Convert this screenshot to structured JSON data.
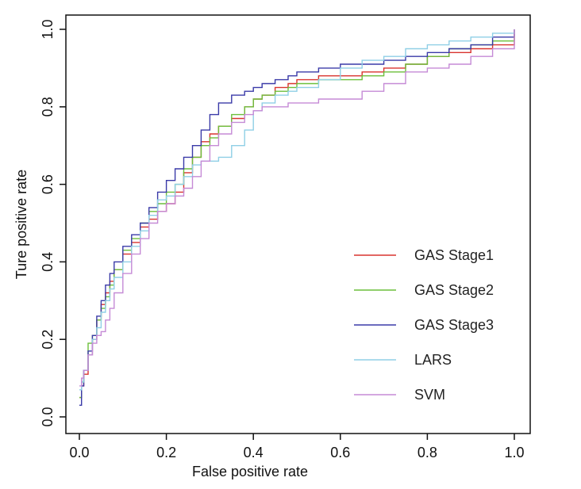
{
  "chart_data": {
    "type": "line",
    "title": "",
    "xlabel": "False positive rate",
    "ylabel": "Ture positive rate",
    "xlim": [
      0,
      1
    ],
    "ylim": [
      0,
      1
    ],
    "xticks": [
      "0.0",
      "0.2",
      "0.4",
      "0.6",
      "0.8",
      "1.0"
    ],
    "yticks": [
      "0.0",
      "0.2",
      "0.4",
      "0.6",
      "0.8",
      "1.0"
    ],
    "grid": false,
    "legend_position": "bottom-right",
    "series": [
      {
        "name": "GAS Stage1",
        "color": "#d9332e",
        "x": [
          0,
          0.005,
          0.01,
          0.02,
          0.03,
          0.04,
          0.05,
          0.06,
          0.07,
          0.08,
          0.1,
          0.12,
          0.14,
          0.16,
          0.18,
          0.2,
          0.22,
          0.24,
          0.26,
          0.28,
          0.3,
          0.32,
          0.35,
          0.38,
          0.4,
          0.42,
          0.45,
          0.48,
          0.5,
          0.55,
          0.6,
          0.65,
          0.7,
          0.75,
          0.8,
          0.85,
          0.9,
          0.95,
          1.0
        ],
        "y": [
          0.05,
          0.08,
          0.11,
          0.16,
          0.2,
          0.25,
          0.29,
          0.32,
          0.35,
          0.38,
          0.42,
          0.45,
          0.49,
          0.51,
          0.53,
          0.55,
          0.58,
          0.63,
          0.67,
          0.71,
          0.73,
          0.75,
          0.77,
          0.8,
          0.82,
          0.83,
          0.85,
          0.86,
          0.87,
          0.88,
          0.88,
          0.89,
          0.9,
          0.91,
          0.93,
          0.94,
          0.95,
          0.96,
          1.0
        ]
      },
      {
        "name": "GAS Stage2",
        "color": "#6cbf3b",
        "x": [
          0,
          0.005,
          0.01,
          0.02,
          0.03,
          0.04,
          0.05,
          0.06,
          0.07,
          0.08,
          0.1,
          0.12,
          0.14,
          0.16,
          0.18,
          0.2,
          0.22,
          0.24,
          0.26,
          0.28,
          0.3,
          0.32,
          0.35,
          0.38,
          0.4,
          0.42,
          0.45,
          0.48,
          0.5,
          0.55,
          0.6,
          0.65,
          0.7,
          0.75,
          0.8,
          0.85,
          0.9,
          0.95,
          1.0
        ],
        "y": [
          0.05,
          0.09,
          0.12,
          0.19,
          0.21,
          0.25,
          0.28,
          0.31,
          0.34,
          0.38,
          0.43,
          0.46,
          0.5,
          0.53,
          0.55,
          0.58,
          0.6,
          0.64,
          0.67,
          0.7,
          0.72,
          0.75,
          0.78,
          0.8,
          0.82,
          0.83,
          0.84,
          0.85,
          0.86,
          0.87,
          0.87,
          0.88,
          0.89,
          0.91,
          0.93,
          0.95,
          0.96,
          0.97,
          1.0
        ]
      },
      {
        "name": "GAS Stage3",
        "color": "#3a3aa8",
        "x": [
          0,
          0.005,
          0.01,
          0.02,
          0.03,
          0.04,
          0.05,
          0.06,
          0.07,
          0.08,
          0.1,
          0.12,
          0.14,
          0.16,
          0.18,
          0.2,
          0.22,
          0.24,
          0.26,
          0.28,
          0.3,
          0.32,
          0.35,
          0.38,
          0.4,
          0.42,
          0.45,
          0.48,
          0.5,
          0.55,
          0.6,
          0.65,
          0.7,
          0.75,
          0.8,
          0.85,
          0.9,
          0.95,
          1.0
        ],
        "y": [
          0.03,
          0.08,
          0.12,
          0.17,
          0.21,
          0.26,
          0.3,
          0.34,
          0.37,
          0.4,
          0.44,
          0.47,
          0.5,
          0.54,
          0.58,
          0.61,
          0.64,
          0.67,
          0.7,
          0.74,
          0.78,
          0.81,
          0.83,
          0.84,
          0.85,
          0.86,
          0.87,
          0.88,
          0.89,
          0.9,
          0.91,
          0.91,
          0.92,
          0.93,
          0.94,
          0.95,
          0.96,
          0.98,
          1.0
        ]
      },
      {
        "name": "LARS",
        "color": "#8fcfe6",
        "x": [
          0,
          0.005,
          0.01,
          0.02,
          0.03,
          0.04,
          0.05,
          0.06,
          0.07,
          0.08,
          0.1,
          0.12,
          0.14,
          0.16,
          0.18,
          0.2,
          0.22,
          0.24,
          0.26,
          0.28,
          0.3,
          0.32,
          0.35,
          0.38,
          0.4,
          0.42,
          0.45,
          0.48,
          0.5,
          0.55,
          0.6,
          0.65,
          0.7,
          0.75,
          0.8,
          0.85,
          0.9,
          0.95,
          1.0
        ],
        "y": [
          0.07,
          0.09,
          0.12,
          0.16,
          0.2,
          0.23,
          0.27,
          0.3,
          0.33,
          0.36,
          0.4,
          0.44,
          0.48,
          0.52,
          0.56,
          0.57,
          0.6,
          0.62,
          0.65,
          0.66,
          0.66,
          0.67,
          0.7,
          0.74,
          0.79,
          0.81,
          0.83,
          0.84,
          0.85,
          0.87,
          0.9,
          0.92,
          0.93,
          0.95,
          0.96,
          0.97,
          0.98,
          0.99,
          1.0
        ]
      },
      {
        "name": "SVM",
        "color": "#c58ad6",
        "x": [
          0,
          0.005,
          0.01,
          0.02,
          0.03,
          0.04,
          0.05,
          0.06,
          0.07,
          0.08,
          0.1,
          0.12,
          0.14,
          0.16,
          0.18,
          0.2,
          0.22,
          0.24,
          0.26,
          0.28,
          0.3,
          0.32,
          0.35,
          0.38,
          0.4,
          0.42,
          0.45,
          0.48,
          0.5,
          0.55,
          0.6,
          0.65,
          0.7,
          0.75,
          0.8,
          0.85,
          0.9,
          0.95,
          1.0
        ],
        "y": [
          0.08,
          0.1,
          0.12,
          0.16,
          0.19,
          0.21,
          0.22,
          0.25,
          0.28,
          0.32,
          0.37,
          0.42,
          0.46,
          0.5,
          0.53,
          0.55,
          0.57,
          0.59,
          0.62,
          0.66,
          0.7,
          0.73,
          0.76,
          0.78,
          0.79,
          0.8,
          0.8,
          0.81,
          0.81,
          0.82,
          0.82,
          0.84,
          0.86,
          0.89,
          0.9,
          0.91,
          0.93,
          0.95,
          1.0
        ]
      }
    ]
  }
}
